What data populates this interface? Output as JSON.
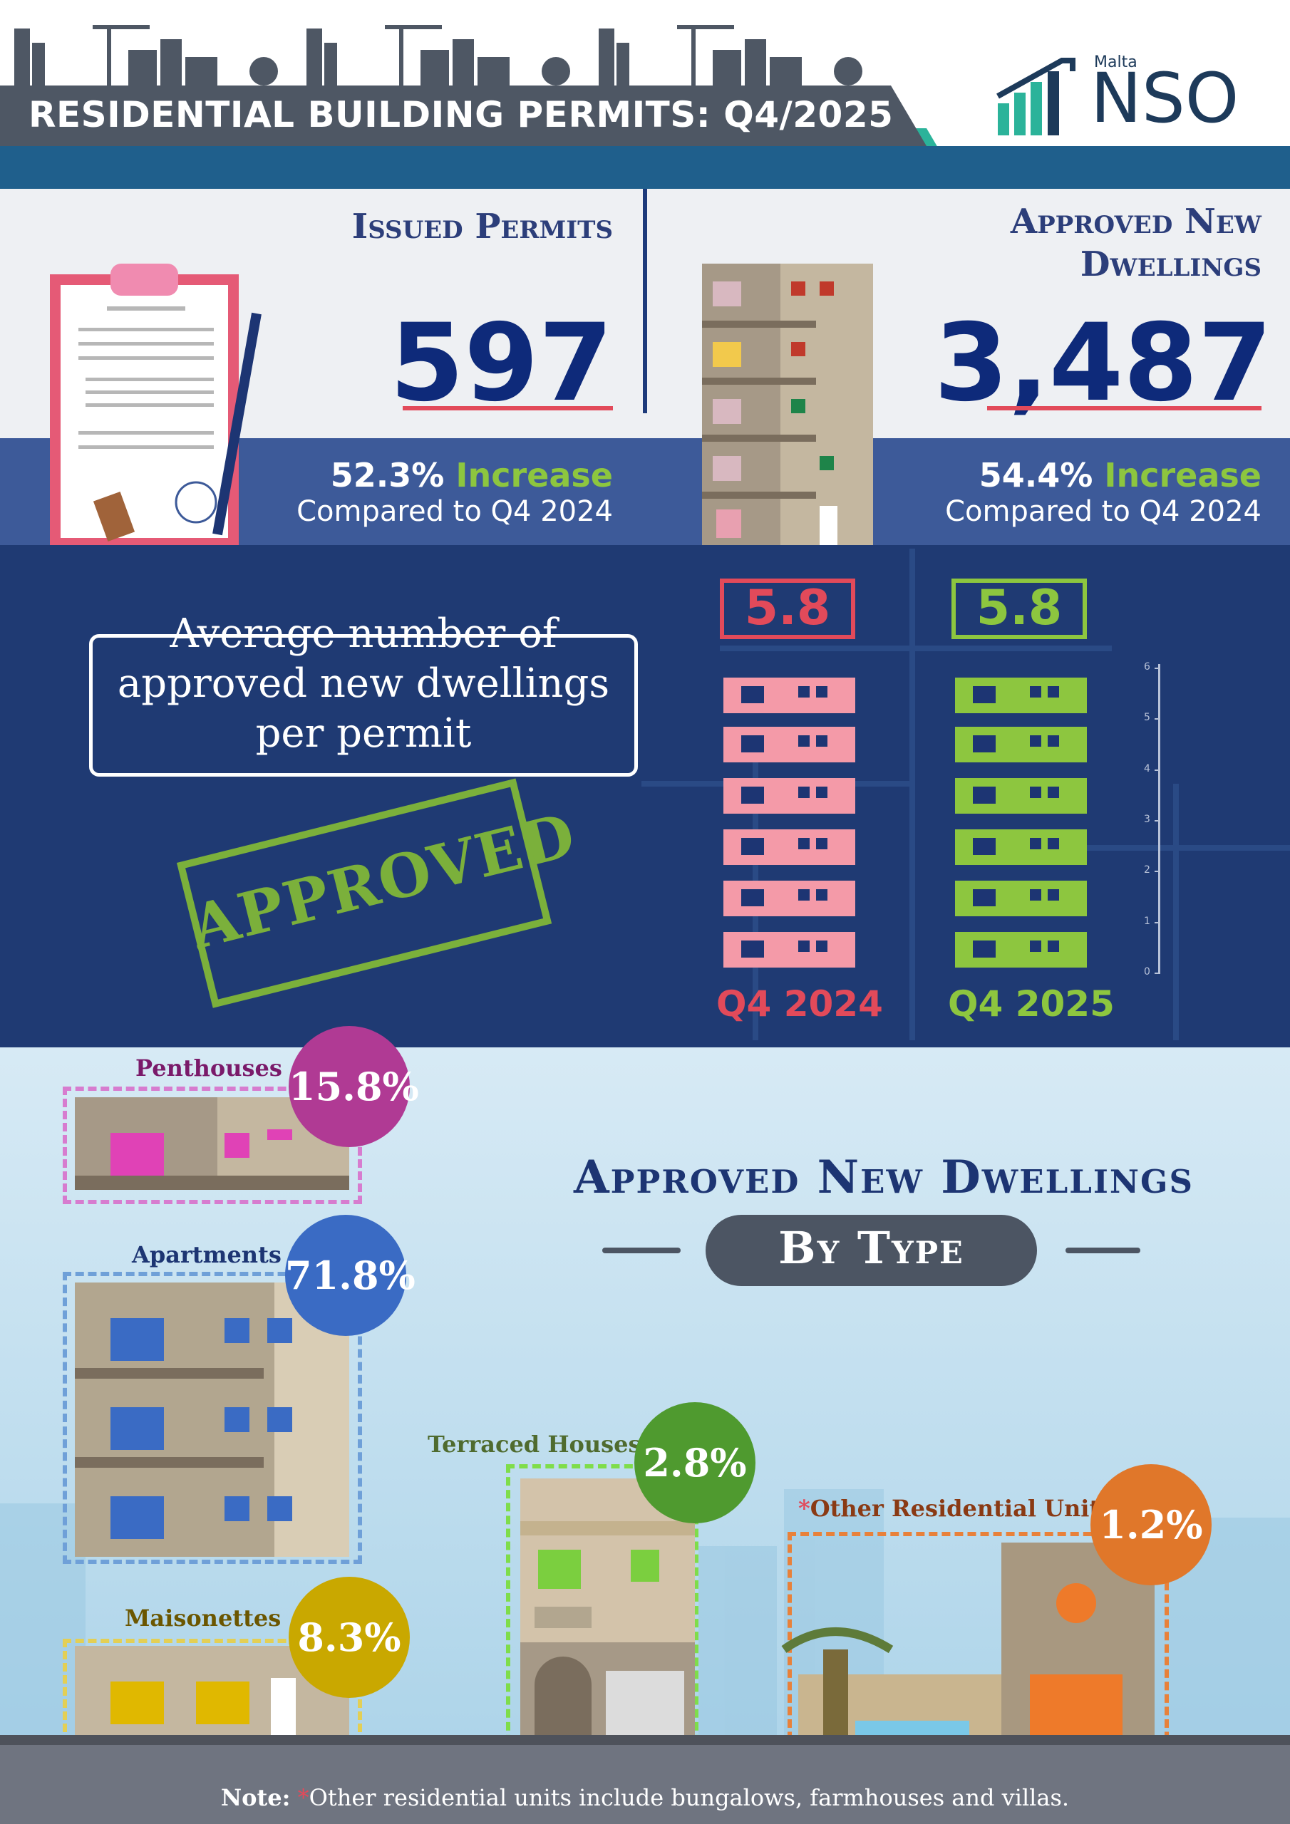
{
  "header": {
    "title": "RESIDENTIAL BUILDING PERMITS: Q4/2025",
    "logo_country": "Malta",
    "logo_name": "NSO"
  },
  "issued_permits": {
    "heading": "Issued Permits",
    "value": "597",
    "change_pct": "52.3%",
    "change_word": "Increase",
    "comparison": "Compared to Q4 2024"
  },
  "approved_dwellings": {
    "heading_line1": "Approved New",
    "heading_line2": "Dwellings",
    "value": "3,487",
    "change_pct": "54.4%",
    "change_word": "Increase",
    "comparison": "Compared to Q4 2024"
  },
  "average": {
    "label": "Average number of approved new dwellings per permit",
    "stamp": "APPROVED"
  },
  "chart_data": {
    "type": "bar",
    "categories": [
      "Q4 2024",
      "Q4 2025"
    ],
    "values": [
      5.8,
      5.8
    ],
    "value_labels": [
      "5.8",
      "5.8"
    ],
    "ylim": [
      0,
      6
    ],
    "yticks": [
      "0",
      "1",
      "2",
      "3",
      "4",
      "5",
      "6"
    ],
    "colors": [
      "#e24a5a",
      "#8dc63f"
    ]
  },
  "by_type": {
    "title": "Approved New Dwellings",
    "subtitle": "By Type",
    "items": [
      {
        "label": "Penthouses",
        "pct": "15.8%",
        "color": "#b03a94"
      },
      {
        "label": "Apartments",
        "pct": "71.8%",
        "color": "#3a6bc4"
      },
      {
        "label": "Maisonettes",
        "pct": "8.3%",
        "color": "#c9a800"
      },
      {
        "label": "Terraced Houses",
        "pct": "2.8%",
        "color": "#4f9a2f"
      },
      {
        "label": "Other Residential Units",
        "pct": "1.2%",
        "color": "#e0772a"
      }
    ]
  },
  "note": {
    "prefix": "Note:",
    "star": "*",
    "text": "Other residential units include bungalows, farmhouses and villas.",
    "other_star": "*"
  },
  "colors": {
    "navy": "#1f3a73",
    "band": "#3d5a99",
    "red": "#e24a5a",
    "green": "#8dc63f",
    "teal": "#2bb39a"
  }
}
